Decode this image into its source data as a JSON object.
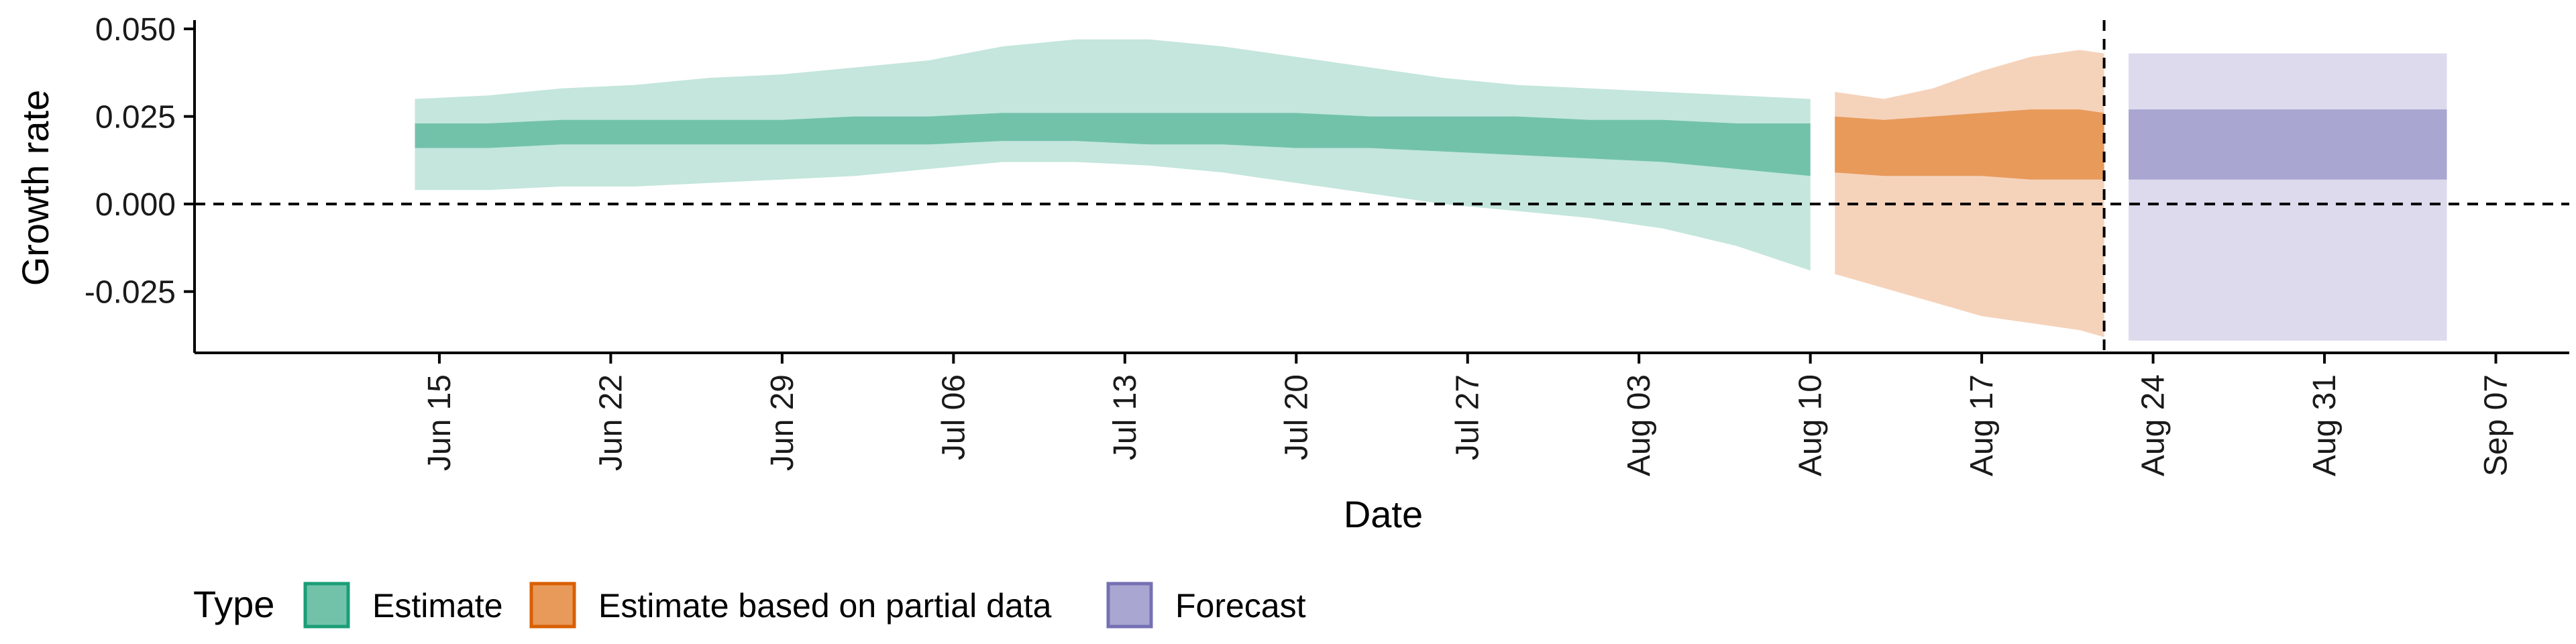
{
  "chart_data": {
    "type": "area",
    "xlabel": "Date",
    "ylabel": "Growth rate",
    "xlim": [
      "2020-06-05",
      "2020-09-10"
    ],
    "ylim": [
      -0.0425,
      0.0525
    ],
    "x_ticks": [
      {
        "date": "2020-06-15",
        "label": "Jun 15"
      },
      {
        "date": "2020-06-22",
        "label": "Jun 22"
      },
      {
        "date": "2020-06-29",
        "label": "Jun 29"
      },
      {
        "date": "2020-07-06",
        "label": "Jul 06"
      },
      {
        "date": "2020-07-13",
        "label": "Jul 13"
      },
      {
        "date": "2020-07-20",
        "label": "Jul 20"
      },
      {
        "date": "2020-07-27",
        "label": "Jul 27"
      },
      {
        "date": "2020-08-03",
        "label": "Aug 03"
      },
      {
        "date": "2020-08-10",
        "label": "Aug 10"
      },
      {
        "date": "2020-08-17",
        "label": "Aug 17"
      },
      {
        "date": "2020-08-24",
        "label": "Aug 24"
      },
      {
        "date": "2020-08-31",
        "label": "Aug 31"
      },
      {
        "date": "2020-09-07",
        "label": "Sep 07"
      }
    ],
    "y_ticks": [
      {
        "value": 0.05,
        "label": "0.050"
      },
      {
        "value": 0.025,
        "label": "0.025"
      },
      {
        "value": 0.0,
        "label": "0.000"
      },
      {
        "value": -0.025,
        "label": "-0.025"
      }
    ],
    "reference_lines": {
      "horizontal_y": 0.0,
      "vertical_date": "2020-08-22"
    },
    "legend": {
      "title": "Type",
      "position": "bottom",
      "items": [
        {
          "label": "Estimate",
          "fill": "#72c2aa",
          "stroke": "#1b9e77"
        },
        {
          "label": "Estimate based on partial data",
          "fill": "#e89a5b",
          "stroke": "#d95f02"
        },
        {
          "label": "Forecast",
          "fill": "#a9a6d2",
          "stroke": "#7570b3"
        }
      ]
    },
    "series": [
      {
        "name": "Estimate",
        "outer_color": "#c4e6dc",
        "inner_color": "#72c2aa",
        "x": [
          "2020-06-14",
          "2020-06-17",
          "2020-06-20",
          "2020-06-23",
          "2020-06-26",
          "2020-06-29",
          "2020-07-02",
          "2020-07-05",
          "2020-07-08",
          "2020-07-11",
          "2020-07-14",
          "2020-07-17",
          "2020-07-20",
          "2020-07-23",
          "2020-07-26",
          "2020-07-29",
          "2020-08-01",
          "2020-08-04",
          "2020-08-07",
          "2020-08-10"
        ],
        "upper90": [
          0.03,
          0.031,
          0.033,
          0.034,
          0.036,
          0.037,
          0.039,
          0.041,
          0.045,
          0.047,
          0.047,
          0.045,
          0.042,
          0.039,
          0.036,
          0.034,
          0.033,
          0.032,
          0.031,
          0.03
        ],
        "upper50": [
          0.023,
          0.023,
          0.024,
          0.024,
          0.024,
          0.024,
          0.025,
          0.025,
          0.026,
          0.026,
          0.026,
          0.026,
          0.026,
          0.025,
          0.025,
          0.025,
          0.024,
          0.024,
          0.023,
          0.023
        ],
        "lower50": [
          0.016,
          0.016,
          0.017,
          0.017,
          0.017,
          0.017,
          0.017,
          0.017,
          0.018,
          0.018,
          0.017,
          0.017,
          0.016,
          0.016,
          0.015,
          0.014,
          0.013,
          0.012,
          0.01,
          0.008
        ],
        "lower90": [
          0.004,
          0.004,
          0.005,
          0.005,
          0.006,
          0.007,
          0.008,
          0.01,
          0.012,
          0.012,
          0.011,
          0.009,
          0.006,
          0.003,
          0.0,
          -0.002,
          -0.004,
          -0.007,
          -0.012,
          -0.019
        ]
      },
      {
        "name": "Estimate based on partial data",
        "outer_color": "#f5d3bb",
        "inner_color": "#e89a5b",
        "x": [
          "2020-08-11",
          "2020-08-13",
          "2020-08-15",
          "2020-08-17",
          "2020-08-19",
          "2020-08-21",
          "2020-08-22"
        ],
        "upper90": [
          0.032,
          0.03,
          0.033,
          0.038,
          0.042,
          0.044,
          0.043
        ],
        "upper50": [
          0.025,
          0.024,
          0.025,
          0.026,
          0.027,
          0.027,
          0.026
        ],
        "lower50": [
          0.009,
          0.008,
          0.008,
          0.008,
          0.007,
          0.007,
          0.007
        ],
        "lower90": [
          -0.02,
          -0.024,
          -0.028,
          -0.032,
          -0.034,
          -0.036,
          -0.038
        ]
      },
      {
        "name": "Forecast",
        "outer_color": "#dcdaec",
        "inner_color": "#a9a6d2",
        "x": [
          "2020-08-23",
          "2020-09-05"
        ],
        "upper90": [
          0.043,
          0.043
        ],
        "upper50": [
          0.027,
          0.027
        ],
        "lower50": [
          0.007,
          0.007
        ],
        "lower90": [
          -0.039,
          -0.039
        ]
      }
    ]
  }
}
